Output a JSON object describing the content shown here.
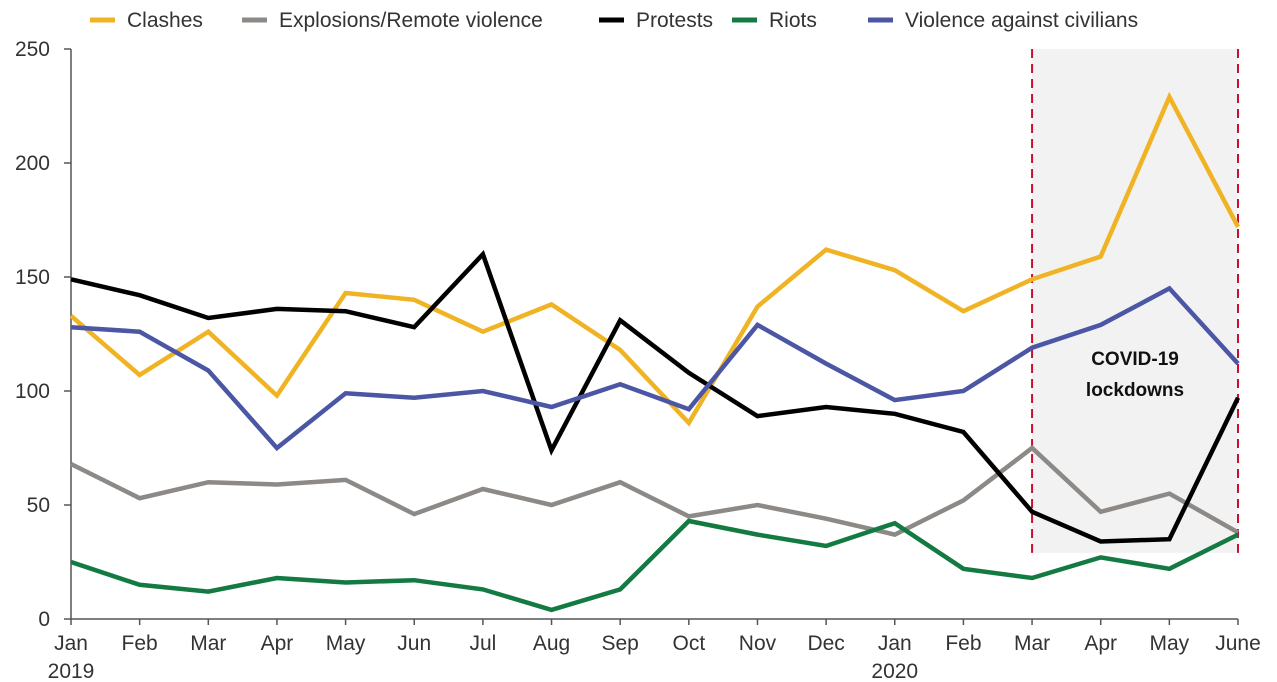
{
  "chart_data": {
    "type": "line",
    "title": "",
    "xlabel": "",
    "ylabel": "",
    "ylim": [
      0,
      250
    ],
    "yticks": [
      0,
      50,
      100,
      150,
      200,
      250
    ],
    "grid": false,
    "legend_position": "top",
    "categories": [
      "Jan",
      "Feb",
      "Mar",
      "Apr",
      "May",
      "Jun",
      "Jul",
      "Aug",
      "Sep",
      "Oct",
      "Nov",
      "Dec",
      "Jan",
      "Feb",
      "Mar",
      "Apr",
      "May",
      "June"
    ],
    "year_labels": [
      {
        "index": 0,
        "label": "2019"
      },
      {
        "index": 12,
        "label": "2020"
      }
    ],
    "series": [
      {
        "name": "Clashes",
        "color": "#f0b323",
        "values": [
          133,
          107,
          126,
          98,
          143,
          140,
          126,
          138,
          118,
          86,
          137,
          162,
          153,
          135,
          149,
          159,
          229,
          172
        ]
      },
      {
        "name": "Explosions/Remote violence",
        "color": "#8c8987",
        "values": [
          68,
          53,
          60,
          59,
          61,
          46,
          57,
          50,
          60,
          45,
          50,
          44,
          37,
          52,
          75,
          47,
          55,
          38
        ]
      },
      {
        "name": "Protests",
        "color": "#000000",
        "values": [
          149,
          142,
          132,
          136,
          135,
          128,
          160,
          74,
          131,
          108,
          89,
          93,
          90,
          82,
          47,
          34,
          35,
          97
        ]
      },
      {
        "name": "Riots",
        "color": "#137a41",
        "values": [
          25,
          15,
          12,
          18,
          16,
          17,
          13,
          4,
          13,
          43,
          37,
          32,
          42,
          22,
          18,
          27,
          22,
          37
        ]
      },
      {
        "name": "Violence against civilians",
        "color": "#4b56a5",
        "values": [
          128,
          126,
          109,
          75,
          99,
          97,
          100,
          93,
          103,
          92,
          129,
          112,
          96,
          100,
          119,
          129,
          145,
          112
        ]
      }
    ],
    "annotation": {
      "lines": [
        "COVID-19",
        "lockdowns"
      ],
      "start_index": 14,
      "end_index": 17,
      "y_bottom": 29,
      "y_top": 250,
      "shade_color": "#f2f2f2",
      "boundary_color": "#c8102e"
    }
  }
}
